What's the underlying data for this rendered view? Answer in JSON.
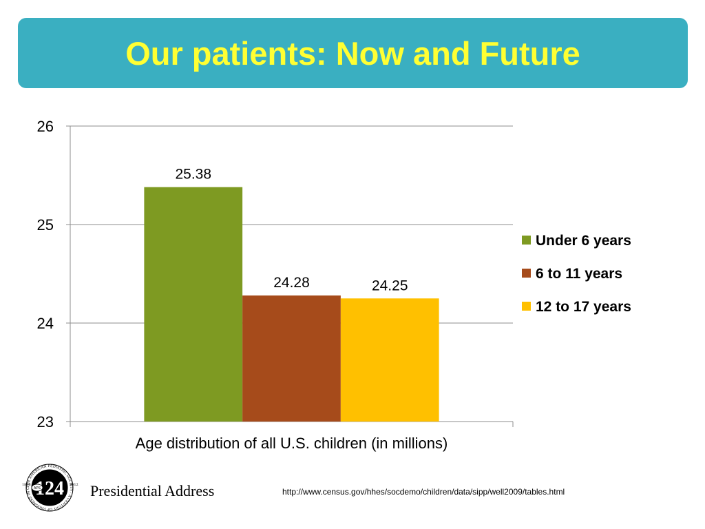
{
  "header": {
    "title": "Our patients: Now and Future"
  },
  "chart_data": {
    "type": "bar",
    "categories": [
      "Age distribution of all U.S. children (in millions)"
    ],
    "xlabel": "Age distribution of all U.S. children (in millions)",
    "ylabel": "",
    "ylim": [
      23,
      26
    ],
    "yticks": [
      23,
      24,
      25,
      26
    ],
    "grid": true,
    "legend_position": "right",
    "series": [
      {
        "name": "Under 6 years",
        "values": [
          25.38
        ],
        "label": "25.38",
        "color": "#7e9a22"
      },
      {
        "name": "6 to 11 years",
        "values": [
          24.28
        ],
        "label": "24.28",
        "color": "#a64b1b"
      },
      {
        "name": "12 to 17 years",
        "values": [
          24.25
        ],
        "label": "24.25",
        "color": "#ffc000"
      }
    ]
  },
  "footer": {
    "logo_text": "124",
    "logo_ring_text": "THE AMERICAN PEDIATRIC SOCIETY · A CENTURY OF PROGRESS IN CHILD HEALTH",
    "logo_years": [
      "1888",
      "2012"
    ],
    "logo_aps": "APS",
    "presidential_label": "Presidential Address",
    "source_url": "http://www.census.gov/hhes/socdemo/children/data/sipp/well2009/tables.html"
  }
}
